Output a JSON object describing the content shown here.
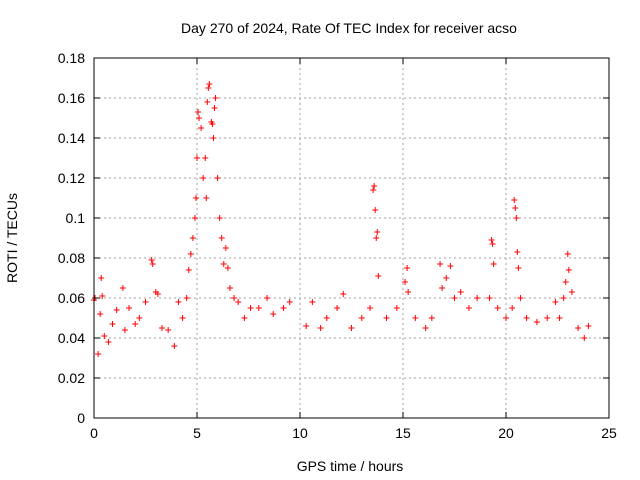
{
  "chart_data": {
    "type": "scatter",
    "title": "Day 270 of 2024, Rate Of TEC Index for receiver acso",
    "xlabel": "GPS time / hours",
    "ylabel": "ROTI / TECUs",
    "xlim": [
      0,
      25
    ],
    "ylim": [
      0,
      0.18
    ],
    "x_ticks": [
      "0",
      "5",
      "10",
      "15",
      "20",
      "25"
    ],
    "y_ticks": [
      "0",
      "0.02",
      "0.04",
      "0.06",
      "0.08",
      "0.1",
      "0.12",
      "0.14",
      "0.16",
      "0.18"
    ],
    "grid": true,
    "marker": "+",
    "color": "#ff0000",
    "series": [
      {
        "values": [
          [
            0.0,
            0.059
          ],
          [
            0.05,
            0.06
          ],
          [
            0.2,
            0.032
          ],
          [
            0.3,
            0.052
          ],
          [
            0.35,
            0.07
          ],
          [
            0.4,
            0.061
          ],
          [
            0.5,
            0.041
          ],
          [
            0.7,
            0.038
          ],
          [
            0.9,
            0.047
          ],
          [
            1.1,
            0.054
          ],
          [
            1.4,
            0.065
          ],
          [
            1.5,
            0.044
          ],
          [
            1.7,
            0.055
          ],
          [
            2.0,
            0.047
          ],
          [
            2.2,
            0.05
          ],
          [
            2.5,
            0.058
          ],
          [
            2.8,
            0.079
          ],
          [
            2.85,
            0.077
          ],
          [
            3.0,
            0.063
          ],
          [
            3.1,
            0.062
          ],
          [
            3.3,
            0.045
          ],
          [
            3.6,
            0.044
          ],
          [
            3.9,
            0.036
          ],
          [
            4.1,
            0.058
          ],
          [
            4.3,
            0.05
          ],
          [
            4.5,
            0.06
          ],
          [
            4.6,
            0.074
          ],
          [
            4.7,
            0.082
          ],
          [
            4.8,
            0.09
          ],
          [
            4.9,
            0.1
          ],
          [
            4.95,
            0.11
          ],
          [
            5.0,
            0.13
          ],
          [
            5.05,
            0.153
          ],
          [
            5.1,
            0.15
          ],
          [
            5.2,
            0.145
          ],
          [
            5.3,
            0.12
          ],
          [
            5.4,
            0.13
          ],
          [
            5.45,
            0.11
          ],
          [
            5.5,
            0.158
          ],
          [
            5.55,
            0.165
          ],
          [
            5.6,
            0.167
          ],
          [
            5.7,
            0.148
          ],
          [
            5.75,
            0.147
          ],
          [
            5.8,
            0.14
          ],
          [
            5.85,
            0.155
          ],
          [
            5.9,
            0.16
          ],
          [
            6.0,
            0.12
          ],
          [
            6.1,
            0.1
          ],
          [
            6.2,
            0.09
          ],
          [
            6.3,
            0.077
          ],
          [
            6.4,
            0.085
          ],
          [
            6.5,
            0.075
          ],
          [
            6.6,
            0.065
          ],
          [
            6.8,
            0.06
          ],
          [
            7.0,
            0.058
          ],
          [
            7.3,
            0.05
          ],
          [
            7.6,
            0.055
          ],
          [
            8.0,
            0.055
          ],
          [
            8.4,
            0.06
          ],
          [
            8.7,
            0.052
          ],
          [
            9.2,
            0.055
          ],
          [
            9.5,
            0.058
          ],
          [
            10.3,
            0.046
          ],
          [
            10.6,
            0.058
          ],
          [
            11.0,
            0.045
          ],
          [
            11.3,
            0.05
          ],
          [
            11.8,
            0.055
          ],
          [
            12.1,
            0.062
          ],
          [
            12.5,
            0.045
          ],
          [
            13.0,
            0.05
          ],
          [
            13.4,
            0.055
          ],
          [
            13.55,
            0.114
          ],
          [
            13.6,
            0.116
          ],
          [
            13.65,
            0.104
          ],
          [
            13.7,
            0.09
          ],
          [
            13.75,
            0.093
          ],
          [
            13.8,
            0.071
          ],
          [
            14.2,
            0.05
          ],
          [
            14.7,
            0.055
          ],
          [
            15.1,
            0.068
          ],
          [
            15.2,
            0.075
          ],
          [
            15.25,
            0.063
          ],
          [
            15.6,
            0.05
          ],
          [
            16.1,
            0.045
          ],
          [
            16.4,
            0.05
          ],
          [
            16.8,
            0.077
          ],
          [
            16.9,
            0.065
          ],
          [
            17.1,
            0.07
          ],
          [
            17.3,
            0.076
          ],
          [
            17.5,
            0.06
          ],
          [
            17.8,
            0.063
          ],
          [
            18.2,
            0.055
          ],
          [
            18.6,
            0.06
          ],
          [
            19.2,
            0.06
          ],
          [
            19.3,
            0.089
          ],
          [
            19.35,
            0.087
          ],
          [
            19.4,
            0.077
          ],
          [
            19.6,
            0.055
          ],
          [
            20.0,
            0.05
          ],
          [
            20.3,
            0.055
          ],
          [
            20.4,
            0.109
          ],
          [
            20.45,
            0.105
          ],
          [
            20.5,
            0.1
          ],
          [
            20.55,
            0.083
          ],
          [
            20.6,
            0.075
          ],
          [
            20.7,
            0.06
          ],
          [
            21.0,
            0.05
          ],
          [
            21.5,
            0.048
          ],
          [
            22.0,
            0.05
          ],
          [
            22.4,
            0.058
          ],
          [
            22.6,
            0.05
          ],
          [
            22.8,
            0.06
          ],
          [
            22.9,
            0.068
          ],
          [
            23.0,
            0.082
          ],
          [
            23.05,
            0.074
          ],
          [
            23.2,
            0.063
          ],
          [
            23.5,
            0.045
          ],
          [
            23.8,
            0.04
          ],
          [
            24.0,
            0.046
          ]
        ]
      }
    ]
  }
}
